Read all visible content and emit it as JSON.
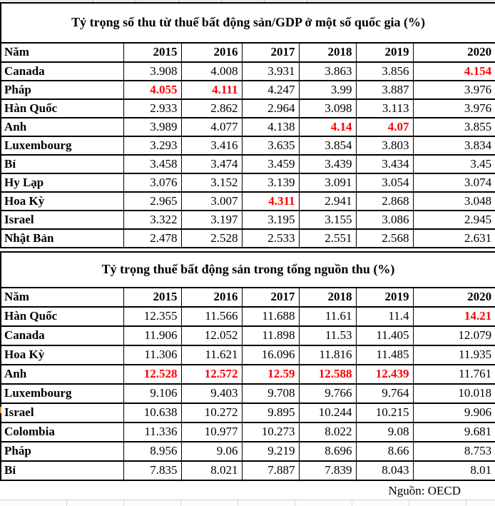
{
  "source_note": "Nguồn: OECD",
  "colors": {
    "highlight": "#ff0000",
    "text": "#000000",
    "border": "#000000",
    "gridline": "#bdbdbd"
  },
  "chart_data": [
    {
      "type": "table",
      "title": "Tỷ trọng số thu từ thuế bất động sản/GDP ở một số quốc gia (%)",
      "columns": [
        "Năm",
        "2015",
        "2016",
        "2017",
        "2018",
        "2019",
        "2020"
      ],
      "rows": [
        {
          "name": "Canada",
          "values": [
            "3.908",
            "4.008",
            "3.931",
            "3.863",
            "3.856",
            "4.154"
          ],
          "red": [
            5
          ]
        },
        {
          "name": "Pháp",
          "values": [
            "4.055",
            "4.111",
            "4.247",
            "3.99",
            "3.887",
            "3.976"
          ],
          "red": [
            0,
            1
          ]
        },
        {
          "name": "Hàn Quốc",
          "values": [
            "2.933",
            "2.862",
            "2.964",
            "3.098",
            "3.113",
            "3.976"
          ],
          "red": []
        },
        {
          "name": "Anh",
          "values": [
            "3.989",
            "4.077",
            "4.138",
            "4.14",
            "4.07",
            "3.855"
          ],
          "red": [
            3,
            4
          ]
        },
        {
          "name": "Luxembourg",
          "values": [
            "3.293",
            "3.416",
            "3.635",
            "3.854",
            "3.803",
            "3.834"
          ],
          "red": []
        },
        {
          "name": "Bỉ",
          "values": [
            "3.458",
            "3.474",
            "3.459",
            "3.439",
            "3.434",
            "3.45"
          ],
          "red": []
        },
        {
          "name": "Hy Lạp",
          "values": [
            "3.076",
            "3.152",
            "3.139",
            "3.091",
            "3.054",
            "3.074"
          ],
          "red": []
        },
        {
          "name": "Hoa Kỳ",
          "values": [
            "2.965",
            "3.007",
            "4.311",
            "2.941",
            "2.868",
            "3.048"
          ],
          "red": [
            2
          ]
        },
        {
          "name": "Israel",
          "values": [
            "3.322",
            "3.197",
            "3.195",
            "3.155",
            "3.086",
            "2.945"
          ],
          "red": []
        },
        {
          "name": "Nhật Bản",
          "values": [
            "2.478",
            "2.528",
            "2.533",
            "2.551",
            "2.568",
            "2.631"
          ],
          "red": []
        }
      ]
    },
    {
      "type": "table",
      "title": "Tỷ trọng thuế bất động sản trong tổng nguồn thu (%)",
      "columns": [
        "Năm",
        "2015",
        "2016",
        "2017",
        "2018",
        "2019",
        "2020"
      ],
      "rows": [
        {
          "name": "Hàn Quốc",
          "values": [
            "12.355",
            "11.566",
            "11.688",
            "11.61",
            "11.4",
            "14.21"
          ],
          "red": [
            5
          ]
        },
        {
          "name": "Canada",
          "values": [
            "11.906",
            "12.052",
            "11.898",
            "11.53",
            "11.405",
            "12.079"
          ],
          "red": []
        },
        {
          "name": "Hoa Kỳ",
          "values": [
            "11.306",
            "11.621",
            "16.096",
            "11.816",
            "11.485",
            "11.935"
          ],
          "red": []
        },
        {
          "name": "Anh",
          "values": [
            "12.528",
            "12.572",
            "12.59",
            "12.588",
            "12.439",
            "11.761"
          ],
          "red": [
            0,
            1,
            2,
            3,
            4
          ]
        },
        {
          "name": "Luxembourg",
          "values": [
            "9.106",
            "9.403",
            "9.708",
            "9.766",
            "9.764",
            "10.018"
          ],
          "red": []
        },
        {
          "name": "Israel",
          "values": [
            "10.638",
            "10.272",
            "9.895",
            "10.244",
            "10.215",
            "9.906"
          ],
          "red": []
        },
        {
          "name": "Colombia",
          "values": [
            "11.336",
            "10.977",
            "10.273",
            "8.022",
            "9.08",
            "9.681"
          ],
          "red": []
        },
        {
          "name": "Pháp",
          "values": [
            "8.956",
            "9.06",
            "9.219",
            "8.696",
            "8.66",
            "8.753"
          ],
          "red": []
        },
        {
          "name": "Bỉ",
          "values": [
            "7.835",
            "8.021",
            "7.887",
            "7.839",
            "8.043",
            "8.01"
          ],
          "red": []
        }
      ]
    }
  ]
}
